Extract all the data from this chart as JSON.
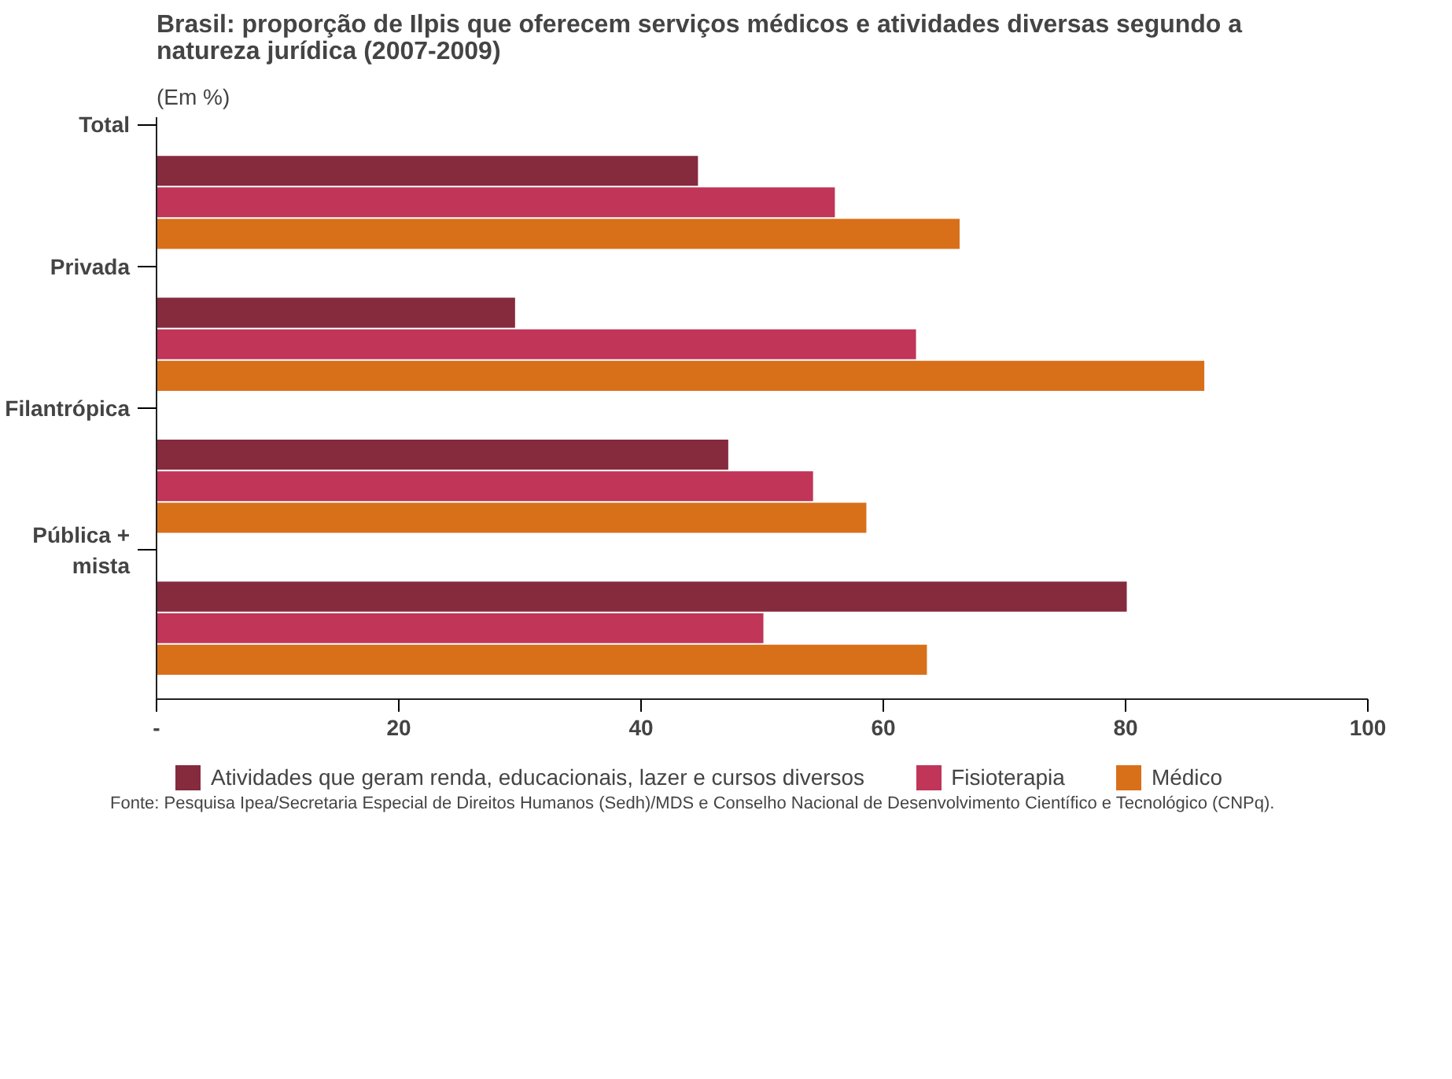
{
  "chart_data": {
    "type": "bar",
    "orientation": "horizontal",
    "title": "Brasil: proporção de Ilpis que oferecem serviços médicos e atividades diversas segundo a natureza jurídica (2007-2009)",
    "subtitle": "(Em %)",
    "categories": [
      "Total",
      "Privada",
      "Filantrópica",
      "Pública + mista"
    ],
    "series": [
      {
        "name": "Atividades que geram renda, educacionais, lazer e cursos diversos",
        "color": "#862a3e",
        "values": [
          44.7,
          29.6,
          47.2,
          80.1
        ]
      },
      {
        "name": "Fisioterapia",
        "color": "#c03558",
        "values": [
          56.0,
          62.7,
          54.2,
          50.1
        ]
      },
      {
        "name": "Médico",
        "color": "#d8701a",
        "values": [
          66.3,
          86.5,
          58.6,
          63.6
        ]
      }
    ],
    "xlim": [
      0,
      100
    ],
    "xticks": [
      {
        "value": 0,
        "label": "-"
      },
      20,
      40,
      60,
      80,
      100
    ],
    "grid": false,
    "legend": "bottom",
    "annotations": [
      "Fonte: Pesquisa Ipea/Secretaria Especial de Direitos Humanos (Sedh)/MDS e Conselho Nacional de Desenvolvimento Científico e Tecnológico (CNPq)."
    ]
  }
}
